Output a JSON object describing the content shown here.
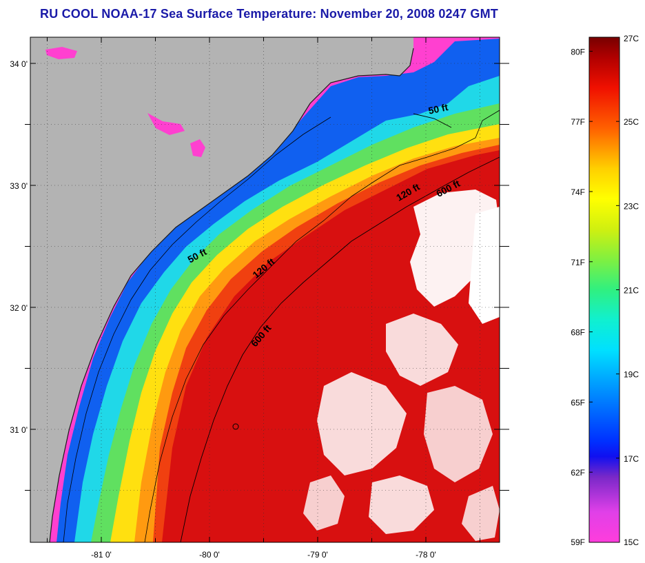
{
  "title": "RU COOL  NOAA-17  Sea Surface Temperature:  November 20, 2008 0247 GMT",
  "map": {
    "lon_ticks": [
      {
        "value": -81,
        "label": "-81 0'"
      },
      {
        "value": -80,
        "label": "-80 0'"
      },
      {
        "value": -79,
        "label": "-79 0'"
      },
      {
        "value": -78,
        "label": "-78 0'"
      }
    ],
    "lat_ticks": [
      {
        "value": 34,
        "label": "34 0'"
      },
      {
        "value": 33,
        "label": "33 0'"
      },
      {
        "value": 32,
        "label": "32 0'"
      },
      {
        "value": 31,
        "label": "31 0'"
      }
    ],
    "contour_labels": [
      {
        "text": "50 ft",
        "lon": -77.88,
        "lat": 33.6,
        "angle": -12
      },
      {
        "text": "50 ft",
        "lon": -80.1,
        "lat": 32.4,
        "angle": -28
      },
      {
        "text": "120 ft",
        "lon": -78.15,
        "lat": 32.92,
        "angle": -30
      },
      {
        "text": "120 ft",
        "lon": -79.48,
        "lat": 32.3,
        "angle": -40
      },
      {
        "text": "600 ft",
        "lon": -77.78,
        "lat": 32.95,
        "angle": -28
      },
      {
        "text": "600 ft",
        "lon": -79.5,
        "lat": 31.75,
        "angle": -50
      }
    ],
    "colors": {
      "land": "#b3b3b3",
      "cloud": "#ffffff",
      "nearshore": "#ff40d0"
    }
  },
  "colorbar": {
    "f_labels": [
      "80F",
      "77F",
      "74F",
      "71F",
      "68F",
      "65F",
      "62F",
      "59F"
    ],
    "c_labels": [
      "27C",
      "25C",
      "23C",
      "21C",
      "19C",
      "17C",
      "15C"
    ],
    "f_values": [
      80,
      77,
      74,
      71,
      68,
      65,
      62,
      59
    ],
    "c_values": [
      27,
      25,
      23,
      21,
      19,
      17,
      15
    ],
    "range_c": [
      15,
      27
    ]
  }
}
